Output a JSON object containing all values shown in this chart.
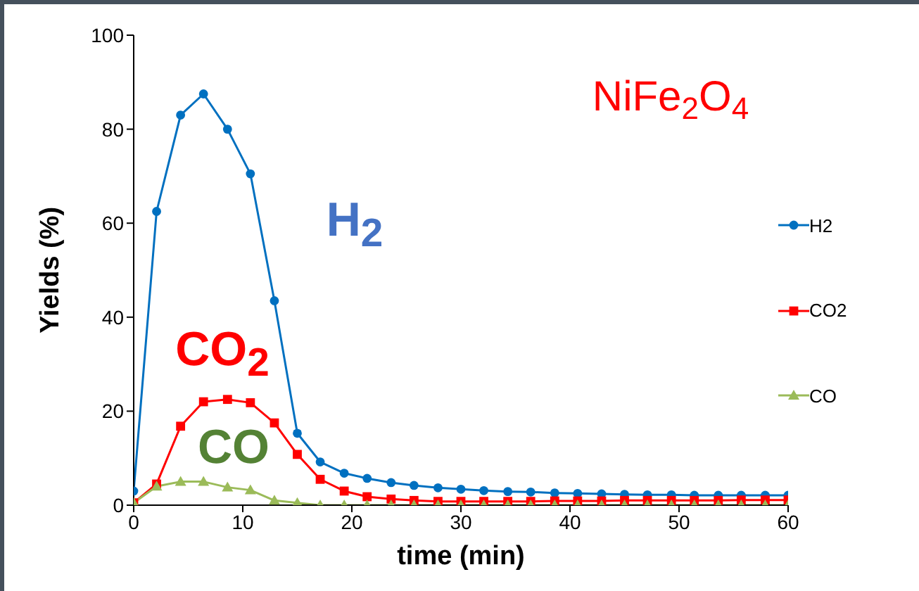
{
  "chart_data": {
    "type": "line",
    "title": "NiFe$_{2}$O$_{4}$",
    "xlabel": "time (min)",
    "ylabel": "Yields (%)",
    "x": [
      0,
      2.1,
      4.3,
      6.4,
      8.6,
      10.7,
      12.9,
      15,
      17.1,
      19.3,
      21.4,
      23.6,
      25.7,
      27.9,
      30,
      32.1,
      34.3,
      36.4,
      38.6,
      40.7,
      42.9,
      45,
      47.1,
      49.3,
      51.4,
      53.6,
      55.7,
      57.9,
      60
    ],
    "series": [
      {
        "name": "H2",
        "color": "#0070c0",
        "marker": "circle",
        "values": [
          3,
          62.5,
          83,
          87.5,
          80,
          70.5,
          43.5,
          15.3,
          9.2,
          6.8,
          5.7,
          4.8,
          4.2,
          3.7,
          3.4,
          3.1,
          2.9,
          2.8,
          2.6,
          2.5,
          2.4,
          2.3,
          2.2,
          2.2,
          2.1,
          2.1,
          2.1,
          2.1,
          2.1
        ]
      },
      {
        "name": "CO2",
        "color": "#ff0000",
        "marker": "square",
        "values": [
          0.5,
          4.5,
          16.8,
          22,
          22.5,
          21.8,
          17.5,
          10.8,
          5.5,
          3,
          1.8,
          1.3,
          1,
          0.8,
          0.8,
          0.8,
          0.8,
          0.8,
          0.9,
          0.9,
          0.9,
          1,
          1,
          1,
          1,
          1,
          1.1,
          1.1,
          1.1
        ]
      },
      {
        "name": "CO",
        "color": "#9bbb59",
        "marker": "triangle",
        "values": [
          0.5,
          4,
          5,
          5,
          3.8,
          3.2,
          1,
          0.5,
          0,
          0,
          0,
          0,
          0,
          0,
          0,
          0,
          0,
          0,
          0,
          0,
          0,
          0,
          0,
          0,
          0,
          0,
          0,
          0,
          0
        ]
      }
    ],
    "annotations": [
      "H$_{2}$",
      "CO$_{2}$",
      "CO"
    ],
    "xlim": [
      0,
      60
    ],
    "xticks": [
      0,
      10,
      20,
      30,
      40,
      50,
      60
    ],
    "ylim": [
      0,
      100
    ],
    "yticks": [
      0,
      20,
      40,
      60,
      80,
      100
    ],
    "grid": false,
    "legend": "right",
    "line_style": "solid"
  }
}
